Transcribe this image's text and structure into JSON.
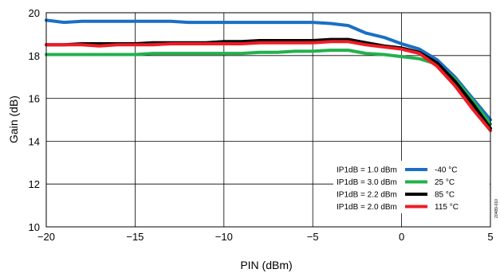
{
  "chart_data": {
    "type": "line",
    "xlabel": "PIN (dBm)",
    "ylabel": "Gain (dB)",
    "xlim": [
      -20,
      5
    ],
    "ylim": [
      10,
      20
    ],
    "xticks": [
      -20,
      -15,
      -10,
      -5,
      0,
      5
    ],
    "yticks": [
      10,
      12,
      14,
      16,
      18,
      20
    ],
    "grid": true,
    "legend_position": "bottom-right",
    "figure_code": "20489-010",
    "series": [
      {
        "name": "-40 °C",
        "annotation": "IP1dB = 1.0 dBm",
        "color": "#1a6fc4",
        "x": [
          -20,
          -19,
          -18,
          -17,
          -16,
          -15,
          -14,
          -13,
          -12,
          -11,
          -10,
          -9,
          -8,
          -7,
          -6,
          -5,
          -4,
          -3,
          -2,
          -1,
          0,
          1,
          2,
          3,
          4,
          5
        ],
        "y": [
          19.65,
          19.55,
          19.6,
          19.6,
          19.6,
          19.6,
          19.6,
          19.6,
          19.55,
          19.55,
          19.55,
          19.55,
          19.55,
          19.55,
          19.55,
          19.55,
          19.5,
          19.4,
          19.05,
          18.85,
          18.55,
          18.3,
          17.8,
          17.0,
          16.0,
          15.0
        ]
      },
      {
        "name": "25 °C",
        "annotation": "IP1dB = 3.0 dBm",
        "color": "#22b14c",
        "x": [
          -20,
          -19,
          -18,
          -17,
          -16,
          -15,
          -14,
          -13,
          -12,
          -11,
          -10,
          -9,
          -8,
          -7,
          -6,
          -5,
          -4,
          -3,
          -2,
          -1,
          0,
          1,
          2,
          3,
          4,
          5
        ],
        "y": [
          18.05,
          18.05,
          18.05,
          18.05,
          18.05,
          18.05,
          18.1,
          18.1,
          18.1,
          18.1,
          18.1,
          18.1,
          18.15,
          18.15,
          18.2,
          18.2,
          18.25,
          18.25,
          18.1,
          18.05,
          17.95,
          17.85,
          17.6,
          16.9,
          15.9,
          14.8
        ]
      },
      {
        "name": "85 °C",
        "annotation": "IP1dB = 2.2 dBm",
        "color": "#000000",
        "x": [
          -20,
          -19,
          -18,
          -17,
          -16,
          -15,
          -14,
          -13,
          -12,
          -11,
          -10,
          -9,
          -8,
          -7,
          -6,
          -5,
          -4,
          -3,
          -2,
          -1,
          0,
          1,
          2,
          3,
          4,
          5
        ],
        "y": [
          18.5,
          18.5,
          18.55,
          18.55,
          18.55,
          18.55,
          18.6,
          18.6,
          18.6,
          18.6,
          18.65,
          18.65,
          18.7,
          18.7,
          18.7,
          18.7,
          18.75,
          18.75,
          18.6,
          18.45,
          18.35,
          18.15,
          17.65,
          16.8,
          15.75,
          14.6
        ]
      },
      {
        "name": "115 °C",
        "annotation": "IP1dB = 2.0 dBm",
        "color": "#ee1c24",
        "x": [
          -20,
          -19,
          -18,
          -17,
          -16,
          -15,
          -14,
          -13,
          -12,
          -11,
          -10,
          -9,
          -8,
          -7,
          -6,
          -5,
          -4,
          -3,
          -2,
          -1,
          0,
          1,
          2,
          3,
          4,
          5
        ],
        "y": [
          18.5,
          18.5,
          18.5,
          18.45,
          18.5,
          18.5,
          18.5,
          18.55,
          18.55,
          18.55,
          18.55,
          18.55,
          18.6,
          18.6,
          18.6,
          18.6,
          18.65,
          18.65,
          18.5,
          18.4,
          18.3,
          18.1,
          17.5,
          16.6,
          15.5,
          14.5
        ]
      }
    ]
  }
}
